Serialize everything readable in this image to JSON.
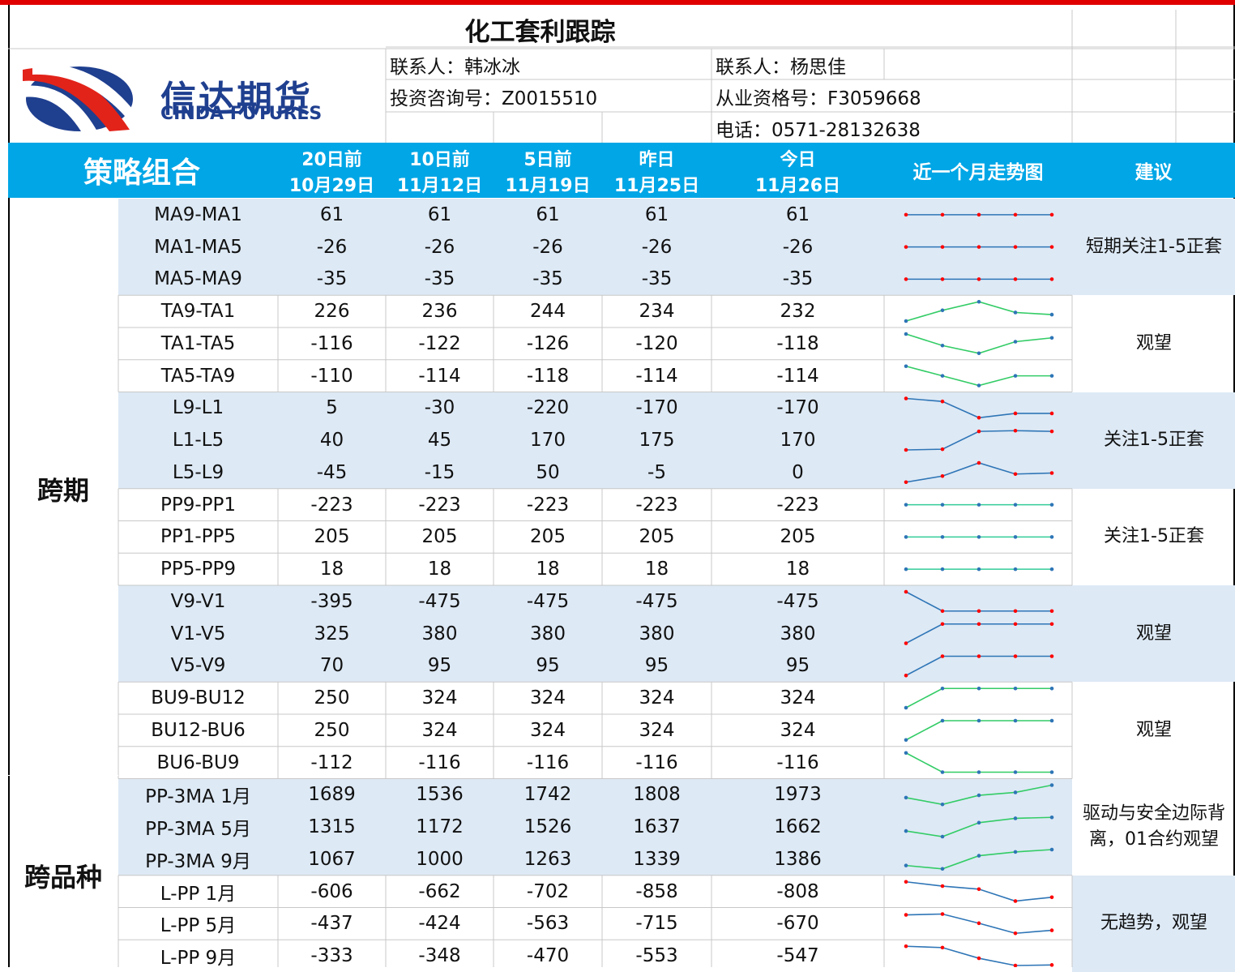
{
  "title": "化工套利跟踪",
  "logo": {
    "name": "信达期货",
    "name_en": "CINDA FUTURES"
  },
  "contacts": {
    "left": [
      "联系人：韩冰冰",
      "投资咨询号：Z0015510"
    ],
    "right": [
      "联系人：杨思佳",
      "从业资格号：F3059668",
      "电话：0571-28132638"
    ]
  },
  "header": {
    "strategy": "策略组合",
    "dates": [
      {
        "ago": "20日前",
        "date": "10月29日"
      },
      {
        "ago": "10日前",
        "date": "11月12日"
      },
      {
        "ago": "5日前",
        "date": "11月19日"
      },
      {
        "ago": "昨日",
        "date": "11月25日"
      },
      {
        "ago": "今日",
        "date": "11月26日"
      }
    ],
    "trend": "近一个月走势图",
    "advice": "建议"
  },
  "categories": [
    {
      "label": "跨期",
      "groups": [
        {
          "advice": "短期关注1-5正套",
          "line_color": "#2e75b6",
          "dot_color": "#ff0000",
          "rows": [
            {
              "name": "MA9-MA1",
              "values": [
                61,
                61,
                61,
                61,
                61
              ]
            },
            {
              "name": "MA1-MA5",
              "values": [
                -26,
                -26,
                -26,
                -26,
                -26
              ]
            },
            {
              "name": "MA5-MA9",
              "values": [
                -35,
                -35,
                -35,
                -35,
                -35
              ]
            }
          ]
        },
        {
          "advice": "观望",
          "line_color": "#33cc66",
          "dot_color": "#2e75b6",
          "rows": [
            {
              "name": "TA9-TA1",
              "values": [
                226,
                236,
                244,
                234,
                232
              ]
            },
            {
              "name": "TA1-TA5",
              "values": [
                -116,
                -122,
                -126,
                -120,
                -118
              ]
            },
            {
              "name": "TA5-TA9",
              "values": [
                -110,
                -114,
                -118,
                -114,
                -114
              ]
            }
          ]
        },
        {
          "advice": "关注1-5正套",
          "line_color": "#2e75b6",
          "dot_color": "#ff0000",
          "rows": [
            {
              "name": "L9-L1",
              "values": [
                5,
                -30,
                -220,
                -170,
                -170
              ]
            },
            {
              "name": "L1-L5",
              "values": [
                40,
                45,
                170,
                175,
                170
              ]
            },
            {
              "name": "L5-L9",
              "values": [
                -45,
                -15,
                50,
                -5,
                0
              ]
            }
          ]
        },
        {
          "advice": "关注1-5正套",
          "line_color": "#33cc99",
          "dot_color": "#2e75b6",
          "rows": [
            {
              "name": "PP9-PP1",
              "values": [
                -223,
                -223,
                -223,
                -223,
                -223
              ]
            },
            {
              "name": "PP1-PP5",
              "values": [
                205,
                205,
                205,
                205,
                205
              ]
            },
            {
              "name": "PP5-PP9",
              "values": [
                18,
                18,
                18,
                18,
                18
              ]
            }
          ]
        },
        {
          "advice": "观望",
          "line_color": "#2e75b6",
          "dot_color": "#ff0000",
          "rows": [
            {
              "name": "V9-V1",
              "values": [
                -395,
                -475,
                -475,
                -475,
                -475
              ]
            },
            {
              "name": "V1-V5",
              "values": [
                325,
                380,
                380,
                380,
                380
              ]
            },
            {
              "name": "V5-V9",
              "values": [
                70,
                95,
                95,
                95,
                95
              ]
            }
          ]
        },
        {
          "advice": "观望",
          "line_color": "#33cc66",
          "dot_color": "#2e75b6",
          "rows": [
            {
              "name": "BU9-BU12",
              "values": [
                250,
                324,
                324,
                324,
                324
              ]
            },
            {
              "name": "BU12-BU6",
              "values": [
                250,
                324,
                324,
                324,
                324
              ]
            },
            {
              "name": "BU6-BU9",
              "values": [
                -112,
                -116,
                -116,
                -116,
                -116
              ]
            }
          ]
        }
      ]
    },
    {
      "label": "跨品种",
      "groups": [
        {
          "advice": "驱动与安全边际背离，01合约观望",
          "line_color": "#33cc66",
          "dot_color": "#2e75b6",
          "rows": [
            {
              "name": "PP-3MA 1月",
              "values": [
                1689,
                1536,
                1742,
                1808,
                1973
              ]
            },
            {
              "name": "PP-3MA 5月",
              "values": [
                1315,
                1172,
                1526,
                1637,
                1662
              ]
            },
            {
              "name": "PP-3MA 9月",
              "values": [
                1067,
                1000,
                1263,
                1339,
                1386
              ]
            }
          ]
        },
        {
          "advice": "无趋势，观望",
          "line_color": "#2e75b6",
          "dot_color": "#ff0000",
          "rows": [
            {
              "name": "L-PP 1月",
              "values": [
                -606,
                -662,
                -702,
                -858,
                -808
              ]
            },
            {
              "name": "L-PP 5月",
              "values": [
                -437,
                -424,
                -563,
                -715,
                -670
              ]
            },
            {
              "name": "L-PP 9月",
              "values": [
                -333,
                -348,
                -470,
                -553,
                -547
              ]
            }
          ]
        }
      ]
    }
  ]
}
